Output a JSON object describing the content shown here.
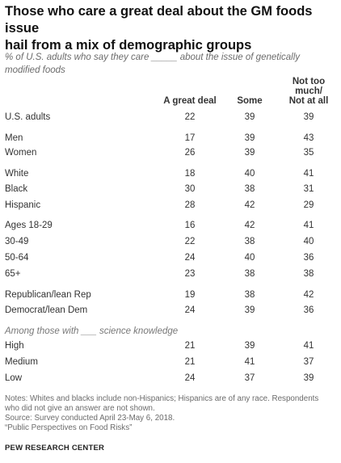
{
  "title_line1": "Those who care a great deal about the GM foods issue",
  "title_line2": "hail from a mix of demographic groups",
  "subtitle_line1": "% of U.S. adults who say they care _____ about the issue of genetically",
  "subtitle_line2": "modified foods",
  "chart_data": {
    "type": "table",
    "columns": [
      "A great deal",
      "Some",
      "Not too much/ Not at all"
    ],
    "column_header_lines": [
      [
        "A great deal"
      ],
      [
        "Some"
      ],
      [
        "Not too",
        "much/",
        "Not at all"
      ]
    ],
    "rows": [
      {
        "label": "U.S. adults",
        "values": [
          22,
          39,
          39
        ]
      },
      {
        "label": "Men",
        "values": [
          17,
          39,
          43
        ]
      },
      {
        "label": "Women",
        "values": [
          26,
          39,
          35
        ]
      },
      {
        "label": "White",
        "values": [
          18,
          40,
          41
        ]
      },
      {
        "label": "Black",
        "values": [
          30,
          38,
          31
        ]
      },
      {
        "label": "Hispanic",
        "values": [
          28,
          42,
          29
        ]
      },
      {
        "label": "Ages 18-29",
        "values": [
          16,
          42,
          41
        ]
      },
      {
        "label": "30-49",
        "values": [
          22,
          38,
          40
        ]
      },
      {
        "label": "50-64",
        "values": [
          24,
          40,
          36
        ]
      },
      {
        "label": "65+",
        "values": [
          23,
          38,
          38
        ]
      },
      {
        "label": "Republican/lean Rep",
        "values": [
          19,
          38,
          42
        ]
      },
      {
        "label": "Democrat/lean Dem",
        "values": [
          24,
          39,
          36
        ]
      },
      {
        "label": "High",
        "values": [
          21,
          39,
          41
        ]
      },
      {
        "label": "Medium",
        "values": [
          21,
          41,
          37
        ]
      },
      {
        "label": "Low",
        "values": [
          24,
          37,
          39
        ]
      }
    ],
    "section_label": "Among those with ___ science knowledge"
  },
  "notes": [
    "Notes: Whites and blacks include non-Hispanics; Hispanics are of any race. Respondents",
    "who did not give an answer are not shown.",
    "Source: Survey conducted April 23-May 6, 2018.",
    "“Public Perspectives on Food Risks”"
  ],
  "source_org": "PEW RESEARCH CENTER"
}
